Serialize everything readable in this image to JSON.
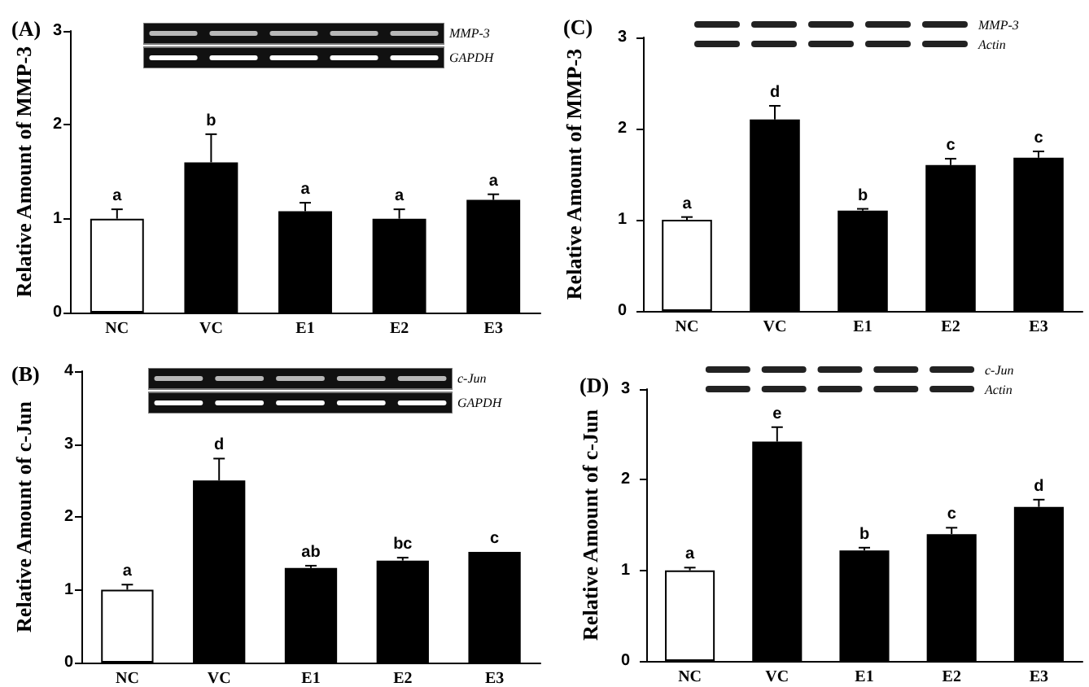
{
  "chart_data": [
    {
      "type": "bar",
      "title": "(A)",
      "ylabel": "Relative Amount of MMP-3",
      "categories": [
        "NC",
        "VC",
        "E1",
        "E2",
        "E3"
      ],
      "values": [
        1.0,
        1.6,
        1.08,
        1.0,
        1.2
      ],
      "colors": [
        "#ffffff",
        "#000000",
        "#000000",
        "#000000",
        "#000000"
      ],
      "errors": [
        [
          1.0,
          1.1
        ],
        [
          1.6,
          1.9
        ],
        [
          1.08,
          1.17
        ],
        [
          1.0,
          1.1
        ],
        [
          1.2,
          1.26
        ]
      ],
      "ylim": [
        0,
        3
      ],
      "yticks": [
        0,
        1,
        2,
        3
      ],
      "annotations": [
        {
          "text": "a",
          "x": "NC",
          "y": 1.1
        },
        {
          "text": "b",
          "x": "VC",
          "y": 1.9
        },
        {
          "text": "a",
          "x": "E1",
          "y": 1.17
        },
        {
          "text": "a",
          "x": "E2",
          "y": 1.1
        },
        {
          "text": "a",
          "x": "E3",
          "y": 1.26
        },
        "MMP-3",
        "GAPDH"
      ]
    },
    {
      "type": "bar",
      "title": "(C)",
      "ylabel": "Relative Amount of MMP-3",
      "categories": [
        "NC",
        "VC",
        "E1",
        "E2",
        "E3"
      ],
      "values": [
        1.0,
        2.1,
        1.1,
        1.6,
        1.68
      ],
      "colors": [
        "#ffffff",
        "#000000",
        "#000000",
        "#000000",
        "#000000"
      ],
      "errors": [
        [
          1.0,
          1.03
        ],
        [
          2.1,
          2.25
        ],
        [
          1.1,
          1.12
        ],
        [
          1.6,
          1.67
        ],
        [
          1.68,
          1.75
        ]
      ],
      "ylim": [
        0,
        3
      ],
      "yticks": [
        0,
        1,
        2,
        3
      ],
      "annotations": [
        {
          "text": "a",
          "x": "NC",
          "y": 1.03
        },
        {
          "text": "d",
          "x": "VC",
          "y": 2.25
        },
        {
          "text": "b",
          "x": "E1",
          "y": 1.12
        },
        {
          "text": "c",
          "x": "E2",
          "y": 1.67
        },
        {
          "text": "c",
          "x": "E3",
          "y": 1.75
        },
        "MMP-3",
        "Actin"
      ]
    },
    {
      "type": "bar",
      "title": "(B)",
      "ylabel": "Relative Amount of c-Jun",
      "categories": [
        "NC",
        "VC",
        "E1",
        "E2",
        "E3"
      ],
      "values": [
        1.0,
        2.5,
        1.3,
        1.4,
        1.52
      ],
      "colors": [
        "#ffffff",
        "#000000",
        "#000000",
        "#000000",
        "#000000"
      ],
      "errors": [
        [
          1.0,
          1.07
        ],
        [
          2.5,
          2.8
        ],
        [
          1.3,
          1.33
        ],
        [
          1.4,
          1.44
        ],
        null
      ],
      "ylim": [
        0,
        4
      ],
      "yticks": [
        0,
        1,
        2,
        3,
        4
      ],
      "annotations": [
        {
          "text": "a",
          "x": "NC",
          "y": 1.07
        },
        {
          "text": "d",
          "x": "VC",
          "y": 2.8
        },
        {
          "text": "ab",
          "x": "E1",
          "y": 1.33
        },
        {
          "text": "bc",
          "x": "E2",
          "y": 1.44
        },
        {
          "text": "c",
          "x": "E3",
          "y": 1.52
        },
        "c-Jun",
        "GAPDH"
      ]
    },
    {
      "type": "bar",
      "title": "(D)",
      "ylabel": "Relative Amount of c-Jun",
      "categories": [
        "NC",
        "VC",
        "E1",
        "E2",
        "E3"
      ],
      "values": [
        1.0,
        2.42,
        1.22,
        1.4,
        1.7
      ],
      "colors": [
        "#ffffff",
        "#000000",
        "#000000",
        "#000000",
        "#000000"
      ],
      "errors": [
        [
          1.0,
          1.03
        ],
        [
          2.42,
          2.58
        ],
        [
          1.22,
          1.25
        ],
        [
          1.4,
          1.47
        ],
        [
          1.7,
          1.78
        ]
      ],
      "ylim": [
        0,
        3
      ],
      "yticks": [
        0,
        1,
        2,
        3
      ],
      "annotations": [
        {
          "text": "a",
          "x": "NC",
          "y": 1.03
        },
        {
          "text": "e",
          "x": "VC",
          "y": 2.58
        },
        {
          "text": "b",
          "x": "E1",
          "y": 1.25
        },
        {
          "text": "c",
          "x": "E2",
          "y": 1.47
        },
        {
          "text": "d",
          "x": "E3",
          "y": 1.78
        },
        "c-Jun",
        "Actin"
      ]
    }
  ]
}
